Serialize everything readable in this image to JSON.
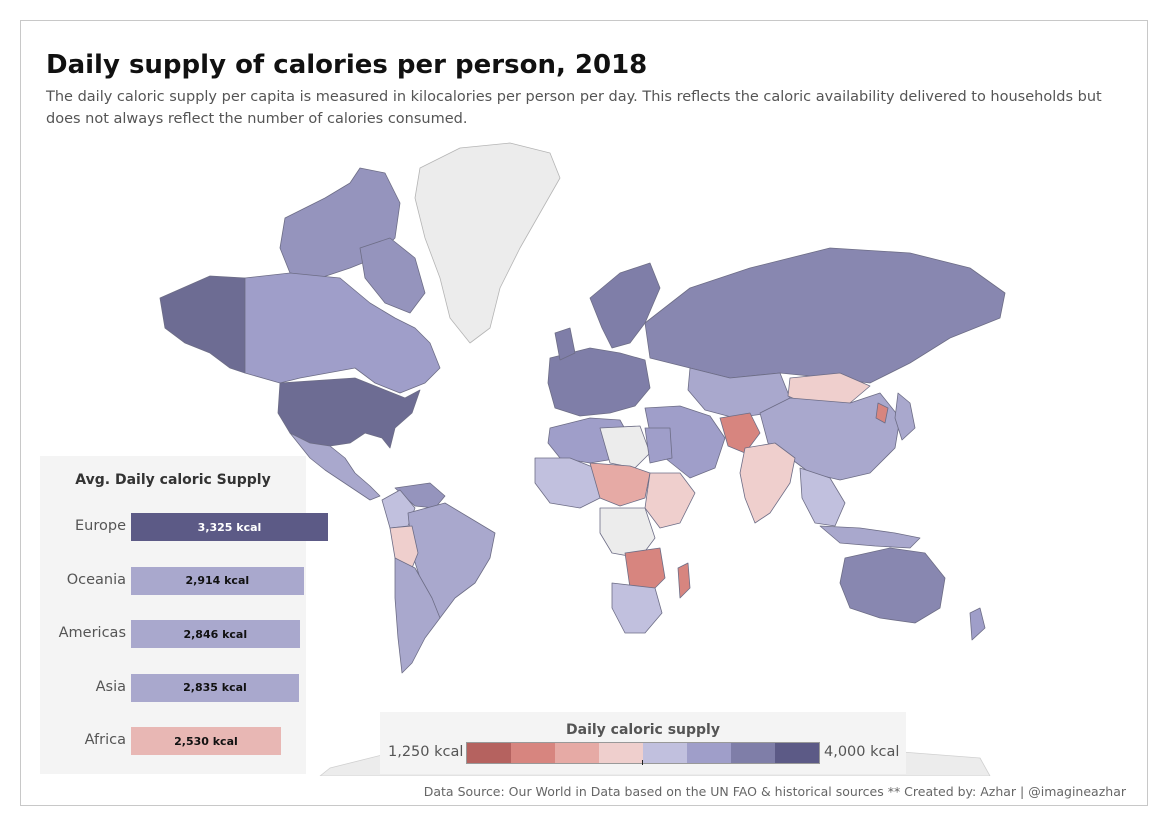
{
  "title": "Daily supply of calories per person, 2018",
  "subtitle": "The daily caloric supply per capita is measured in kilocalories per person per day. This reflects the caloric availability delivered to households but does not always reflect the number of calories consumed.",
  "bar_panel": {
    "title": "Avg. Daily caloric Supply"
  },
  "chart_data": {
    "type": "bar",
    "orientation": "horizontal",
    "title": "Avg. Daily caloric Supply",
    "categories": [
      "Europe",
      "Oceania",
      "Americas",
      "Asia",
      "Africa"
    ],
    "values": [
      3325,
      2914,
      2846,
      2835,
      2530
    ],
    "value_labels": [
      "3,325 kcal",
      "2,914 kcal",
      "2,846 kcal",
      "2,835 kcal",
      "2,530 kcal"
    ],
    "bar_colors": [
      "#5c5a86",
      "#a9a8cd",
      "#a9a8cd",
      "#a9a8cd",
      "#e8b7b4"
    ],
    "grid": false
  },
  "legend": {
    "title": "Daily caloric supply",
    "min_label": "1,250 kcal",
    "max_label": "4,000 kcal",
    "colors": [
      "#b5625f",
      "#d7857f",
      "#e6aaa5",
      "#efcfcd",
      "#c1c0de",
      "#9f9ec9",
      "#7f7ea8",
      "#5c5a86"
    ]
  },
  "footer": "Data Source:  Our World in Data based on the UN FAO & historical sources ** Created by: Azhar | @imagineazhar",
  "map_colors": {
    "no_data": "#ececec",
    "border": "#6d6d86"
  }
}
